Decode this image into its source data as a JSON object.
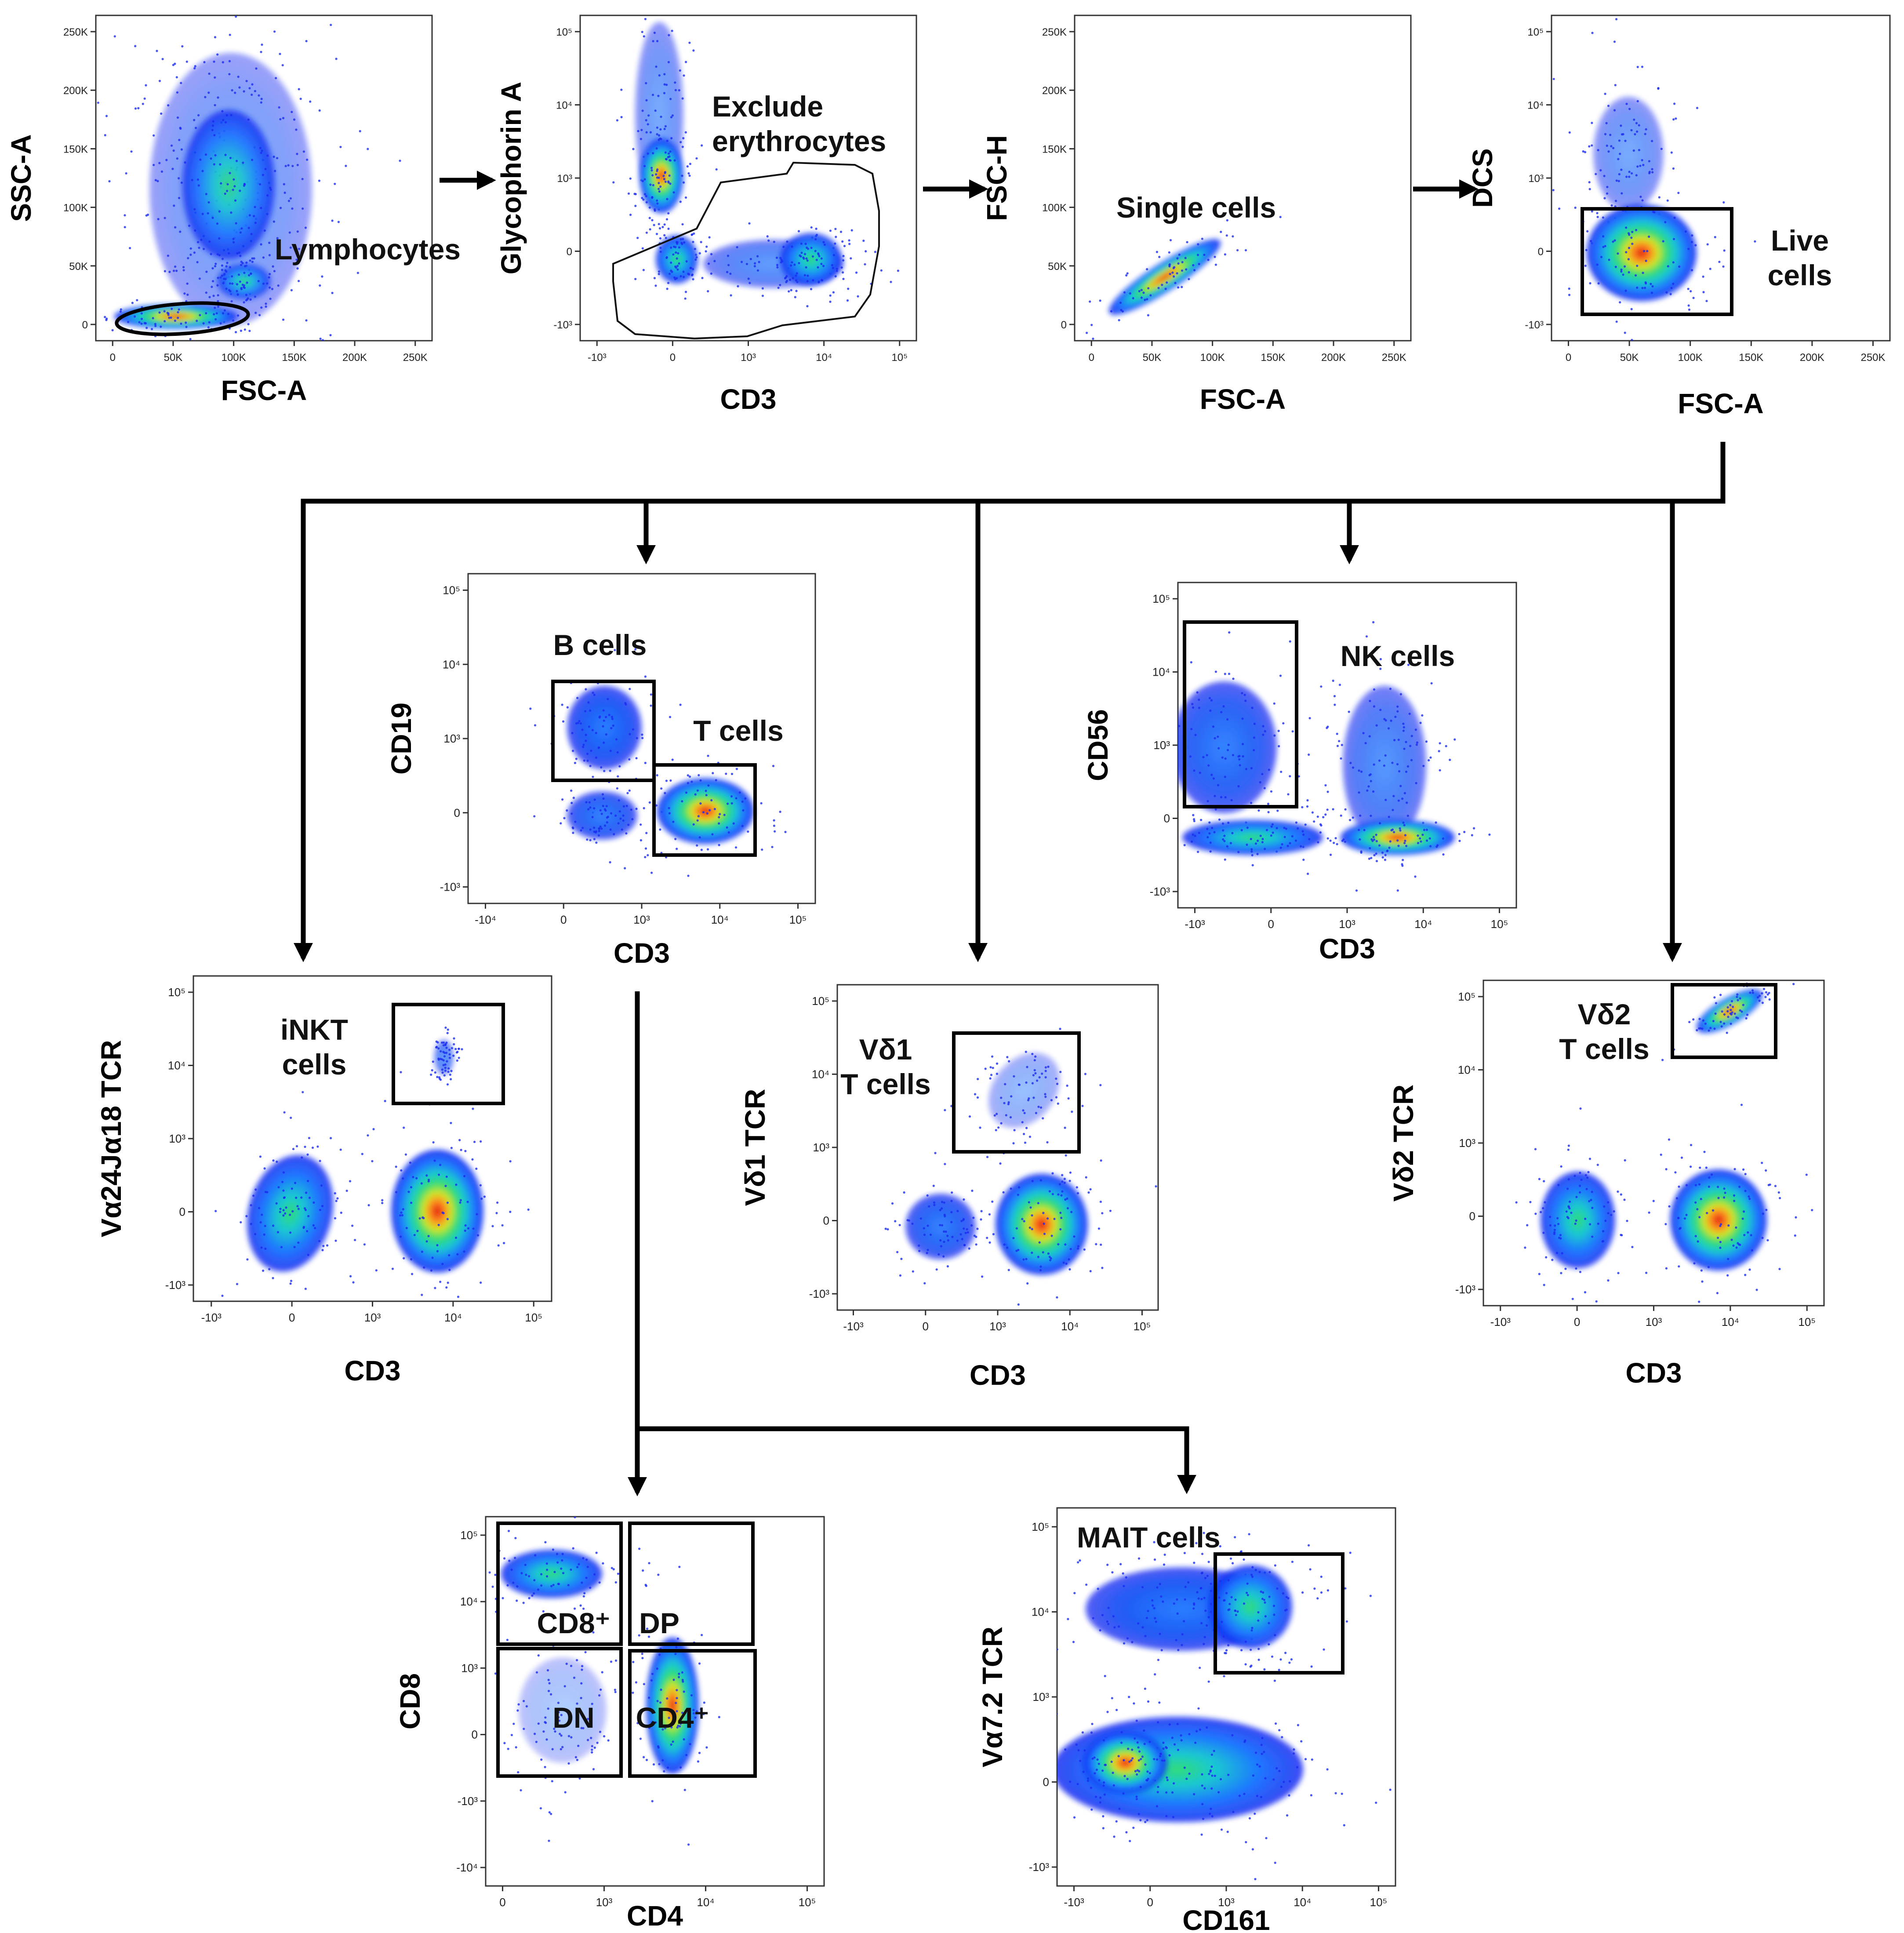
{
  "panels": [
    {
      "id": "lymphocytes",
      "x_label": "FSC-A",
      "y_label": "SSC-A",
      "x_ticks": [
        "0",
        "50K",
        "100K",
        "150K",
        "200K",
        "250K"
      ],
      "y_ticks": [
        "0",
        "50K",
        "100K",
        "150K",
        "200K",
        "250K"
      ],
      "gates": [
        {
          "label": "Lymphocytes"
        }
      ]
    },
    {
      "id": "erythrocytes",
      "x_label": "CD3",
      "y_label": "Glycophorin A",
      "x_ticks": [
        "-10³",
        "0",
        "10³",
        "10⁴",
        "10⁵"
      ],
      "y_ticks": [
        "-10³",
        "0",
        "10³",
        "10⁴",
        "10⁵"
      ],
      "gates": [
        {
          "label": "Exclude erythrocytes"
        }
      ]
    },
    {
      "id": "single-cells",
      "x_label": "FSC-A",
      "y_label": "FSC-H",
      "x_ticks": [
        "0",
        "50K",
        "100K",
        "150K",
        "200K",
        "250K"
      ],
      "y_ticks": [
        "0",
        "50K",
        "100K",
        "150K",
        "200K",
        "250K"
      ],
      "gates": [
        {
          "label": "Single cells"
        }
      ]
    },
    {
      "id": "live-cells",
      "x_label": "FSC-A",
      "y_label": "DCS",
      "x_ticks": [
        "0",
        "50K",
        "100K",
        "150K",
        "200K",
        "250K"
      ],
      "y_ticks": [
        "-10³",
        "0",
        "10³",
        "10⁴",
        "10⁵"
      ],
      "gates": [
        {
          "label": "Live cells"
        }
      ]
    },
    {
      "id": "b-t-cells",
      "x_label": "CD3",
      "y_label": "CD19",
      "x_ticks": [
        "-10⁴",
        "0",
        "10³",
        "10⁴",
        "10⁵"
      ],
      "y_ticks": [
        "-10³",
        "0",
        "10³",
        "10⁴",
        "10⁵"
      ],
      "gates": [
        {
          "label": "B cells"
        },
        {
          "label": "T cells"
        }
      ]
    },
    {
      "id": "nk-cells",
      "x_label": "CD3",
      "y_label": "CD56",
      "x_ticks": [
        "-10³",
        "0",
        "10³",
        "10⁴",
        "10⁵"
      ],
      "y_ticks": [
        "-10³",
        "0",
        "10³",
        "10⁴",
        "10⁵"
      ],
      "gates": [
        {
          "label": "NK cells"
        }
      ]
    },
    {
      "id": "inkt-cells",
      "x_label": "CD3",
      "y_label": "Vα24Jα18 TCR",
      "x_ticks": [
        "-10³",
        "0",
        "10³",
        "10⁴",
        "10⁵"
      ],
      "y_ticks": [
        "-10³",
        "0",
        "10³",
        "10⁴",
        "10⁵"
      ],
      "gates": [
        {
          "label": "iNKT cells"
        }
      ]
    },
    {
      "id": "vd1-cells",
      "x_label": "CD3",
      "y_label": "Vδ1 TCR",
      "x_ticks": [
        "-10³",
        "0",
        "10³",
        "10⁴",
        "10⁵"
      ],
      "y_ticks": [
        "-10³",
        "0",
        "10³",
        "10⁴",
        "10⁵"
      ],
      "gates": [
        {
          "label": "Vδ1 T cells"
        }
      ]
    },
    {
      "id": "vd2-cells",
      "x_label": "CD3",
      "y_label": "Vδ2 TCR",
      "x_ticks": [
        "-10³",
        "0",
        "10³",
        "10⁴",
        "10⁵"
      ],
      "y_ticks": [
        "-10³",
        "0",
        "10³",
        "10⁴",
        "10⁵"
      ],
      "gates": [
        {
          "label": "Vδ2 T cells"
        }
      ]
    },
    {
      "id": "cd4-cd8",
      "x_label": "CD4",
      "y_label": "CD8",
      "x_ticks": [
        "0",
        "10³",
        "10⁴",
        "10⁵"
      ],
      "y_ticks": [
        "-10⁴",
        "-10³",
        "0",
        "10³",
        "10⁴",
        "10⁵"
      ],
      "gates": [
        {
          "label": "CD8⁺"
        },
        {
          "label": "DP"
        },
        {
          "label": "DN"
        },
        {
          "label": "CD4⁺"
        }
      ]
    },
    {
      "id": "mait-cells",
      "x_label": "CD161",
      "y_label": "Vα7.2 TCR",
      "x_ticks": [
        "-10³",
        "0",
        "10³",
        "10⁴",
        "10⁵"
      ],
      "y_ticks": [
        "-10³",
        "0",
        "10³",
        "10⁴",
        "10⁵"
      ],
      "gates": [
        {
          "label": "MAIT cells"
        }
      ]
    }
  ],
  "colors": {
    "density": [
      "#0a1ef0",
      "#1e78ff",
      "#19c8d2",
      "#32dc78",
      "#d2e628",
      "#ff8c1e",
      "#dc1414"
    ],
    "gate": "#000000",
    "arrow": "#000000"
  }
}
